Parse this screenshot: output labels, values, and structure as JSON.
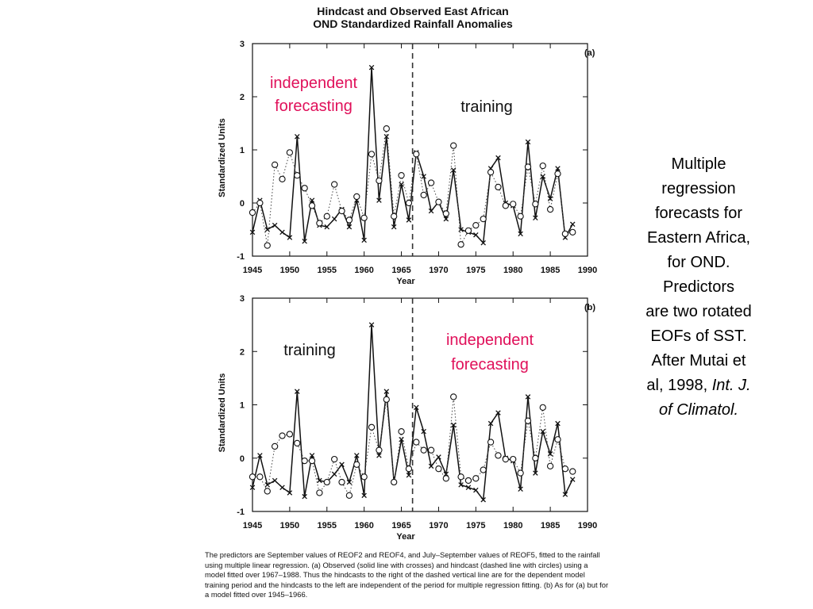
{
  "figure": {
    "title_line1": "Hindcast and Observed East African",
    "title_line2": "OND Standardized Rainfall Anomalies"
  },
  "side_note": {
    "line1": "Multiple",
    "line2": "regression",
    "line3": "forecasts for",
    "line4": "Eastern Africa,",
    "line5": "for OND.",
    "line6": "Predictors",
    "line7": "are two rotated",
    "line8": "EOFs of SST.",
    "line9": "After Mutai et",
    "line10": "al, 1998,",
    "line10_italic": "Int. J.",
    "line11": "of Climatol."
  },
  "caption": {
    "text": "The predictors are September values of REOF2 and REOF4, and July–September values of REOF5, fitted to the rainfall using multiple linear regression. (a) Observed (solid line with crosses) and hindcast (dashed line with circles) using a model fitted over 1967–1988. Thus the hindcasts to the right of the dashed vertical line are for the dependent model training period and the hindcasts to the left are independent of the period for multiple regression fitting. (b) As for (a) but for a model fitted over 1945–1966."
  },
  "colors": {
    "annotation": "#e0105a",
    "ink": "#111111"
  },
  "chart_data": [
    {
      "type": "line",
      "panel_label": "(a)",
      "xlabel": "Year",
      "ylabel": "Standardized Units",
      "xlim": [
        1945,
        1990
      ],
      "ylim": [
        -1,
        3
      ],
      "xticks": [
        1945,
        1950,
        1955,
        1960,
        1965,
        1970,
        1975,
        1980,
        1985,
        1990
      ],
      "yticks": [
        -1,
        0,
        1,
        2,
        3
      ],
      "divider_year": 1966.5,
      "annotations": [
        {
          "line1": "independent",
          "line2": "forecasting",
          "color": "#e0105a",
          "side": "left"
        },
        {
          "line1": "training",
          "line2": "",
          "color": "#111111",
          "side": "right"
        }
      ],
      "series": [
        {
          "style": "solid-cross",
          "x": [
            1945,
            1946,
            1947,
            1948,
            1949,
            1950,
            1951,
            1952,
            1953,
            1954,
            1955,
            1956,
            1957,
            1958,
            1959,
            1960,
            1961,
            1962,
            1963,
            1964,
            1965,
            1966,
            1967,
            1968,
            1969,
            1970,
            1971,
            1972,
            1973,
            1974,
            1975,
            1976,
            1977,
            1978,
            1979,
            1980,
            1981,
            1982,
            1983,
            1984,
            1985,
            1986,
            1987,
            1988
          ],
          "values": [
            -0.55,
            0.05,
            -0.5,
            -0.42,
            -0.55,
            -0.65,
            1.25,
            -0.72,
            0.05,
            -0.42,
            -0.45,
            -0.3,
            -0.12,
            -0.45,
            0.05,
            -0.7,
            2.55,
            0.05,
            1.25,
            -0.45,
            0.35,
            -0.32,
            0.95,
            0.5,
            -0.15,
            0.02,
            -0.3,
            0.62,
            -0.5,
            -0.55,
            -0.6,
            -0.75,
            0.65,
            0.85,
            0.0,
            -0.05,
            -0.58,
            1.15,
            -0.28,
            0.5,
            0.08,
            0.65,
            -0.65,
            -0.4
          ]
        },
        {
          "style": "dotted-circle",
          "x": [
            1945,
            1946,
            1947,
            1948,
            1949,
            1950,
            1951,
            1952,
            1953,
            1954,
            1955,
            1956,
            1957,
            1958,
            1959,
            1960,
            1961,
            1962,
            1963,
            1964,
            1965,
            1966,
            1967,
            1968,
            1969,
            1970,
            1971,
            1972,
            1973,
            1974,
            1975,
            1976,
            1977,
            1978,
            1979,
            1980,
            1981,
            1982,
            1983,
            1984,
            1985,
            1986,
            1987,
            1988
          ],
          "values": [
            -0.18,
            0.0,
            -0.8,
            0.72,
            0.45,
            0.95,
            0.52,
            0.28,
            -0.05,
            -0.38,
            -0.25,
            0.35,
            -0.15,
            -0.32,
            0.12,
            -0.28,
            0.92,
            0.42,
            1.4,
            -0.25,
            0.52,
            0.0,
            0.92,
            0.15,
            0.38,
            0.02,
            -0.2,
            1.08,
            -0.78,
            -0.52,
            -0.42,
            -0.3,
            0.58,
            0.3,
            -0.05,
            -0.02,
            -0.25,
            0.68,
            -0.02,
            0.7,
            -0.12,
            0.55,
            -0.58,
            -0.55
          ]
        }
      ]
    },
    {
      "type": "line",
      "panel_label": "(b)",
      "xlabel": "Year",
      "ylabel": "Standardized Units",
      "xlim": [
        1945,
        1990
      ],
      "ylim": [
        -1,
        3
      ],
      "xticks": [
        1945,
        1950,
        1955,
        1960,
        1965,
        1970,
        1975,
        1980,
        1985,
        1990
      ],
      "yticks": [
        -1,
        0,
        1,
        2,
        3
      ],
      "divider_year": 1966.5,
      "annotations": [
        {
          "line1": "training",
          "line2": "",
          "color": "#111111",
          "side": "left"
        },
        {
          "line1": "independent",
          "line2": "forecasting",
          "color": "#e0105a",
          "side": "right"
        }
      ],
      "series": [
        {
          "style": "solid-cross",
          "x": [
            1945,
            1946,
            1947,
            1948,
            1949,
            1950,
            1951,
            1952,
            1953,
            1954,
            1955,
            1956,
            1957,
            1958,
            1959,
            1960,
            1961,
            1962,
            1963,
            1964,
            1965,
            1966,
            1967,
            1968,
            1969,
            1970,
            1971,
            1972,
            1973,
            1974,
            1975,
            1976,
            1977,
            1978,
            1979,
            1980,
            1981,
            1982,
            1983,
            1984,
            1985,
            1986,
            1987,
            1988
          ],
          "values": [
            -0.55,
            0.05,
            -0.5,
            -0.42,
            -0.55,
            -0.65,
            1.25,
            -0.72,
            0.05,
            -0.42,
            -0.45,
            -0.3,
            -0.12,
            -0.45,
            0.05,
            -0.7,
            2.5,
            0.05,
            1.25,
            -0.45,
            0.35,
            -0.32,
            0.95,
            0.5,
            -0.15,
            0.02,
            -0.3,
            0.62,
            -0.5,
            -0.55,
            -0.6,
            -0.78,
            0.65,
            0.85,
            0.0,
            -0.05,
            -0.58,
            1.15,
            -0.28,
            0.5,
            0.08,
            0.65,
            -0.68,
            -0.4
          ]
        },
        {
          "style": "dotted-circle",
          "x": [
            1945,
            1946,
            1947,
            1948,
            1949,
            1950,
            1951,
            1952,
            1953,
            1954,
            1955,
            1956,
            1957,
            1958,
            1959,
            1960,
            1961,
            1962,
            1963,
            1964,
            1965,
            1966,
            1967,
            1968,
            1969,
            1970,
            1971,
            1972,
            1973,
            1974,
            1975,
            1976,
            1977,
            1978,
            1979,
            1980,
            1981,
            1982,
            1983,
            1984,
            1985,
            1986,
            1987,
            1988
          ],
          "values": [
            -0.35,
            -0.35,
            -0.62,
            0.22,
            0.42,
            0.45,
            0.28,
            -0.05,
            -0.05,
            -0.65,
            -0.45,
            -0.02,
            -0.45,
            -0.7,
            -0.12,
            -0.35,
            0.58,
            0.15,
            1.1,
            -0.45,
            0.5,
            -0.2,
            0.3,
            0.15,
            0.15,
            -0.2,
            -0.38,
            1.15,
            -0.35,
            -0.42,
            -0.38,
            -0.22,
            0.3,
            0.05,
            -0.02,
            -0.02,
            -0.28,
            0.7,
            0.0,
            0.95,
            -0.15,
            0.35,
            -0.2,
            -0.25
          ]
        }
      ]
    }
  ]
}
